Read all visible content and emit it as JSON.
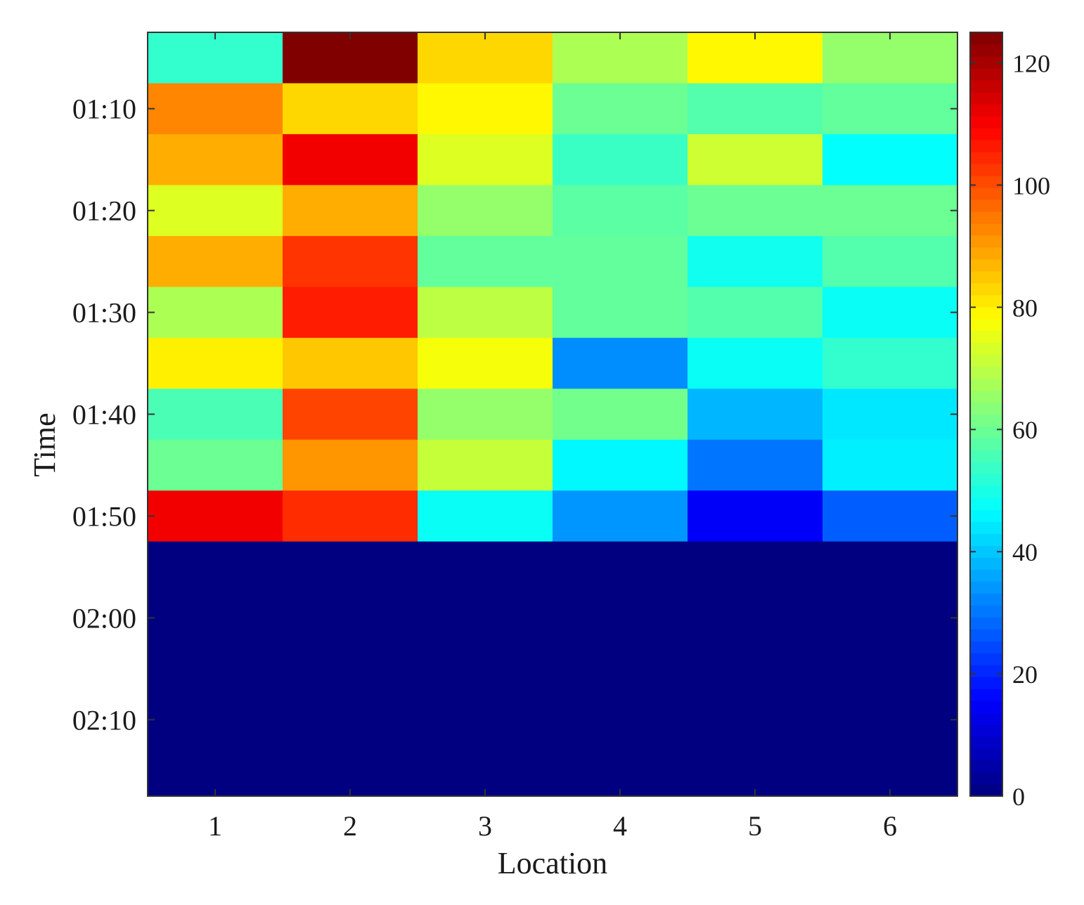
{
  "chart_data": {
    "type": "heatmap",
    "title": "",
    "xlabel": "Location",
    "ylabel": "Time",
    "x_categories": [
      "1",
      "2",
      "3",
      "4",
      "5",
      "6"
    ],
    "y_categories": [
      "01:05",
      "01:10",
      "01:15",
      "01:20",
      "01:25",
      "01:30",
      "01:35",
      "01:40",
      "01:45",
      "01:50",
      "01:55",
      "02:00",
      "02:05",
      "02:10",
      "02:15"
    ],
    "y_tick_labels": [
      "01:10",
      "01:20",
      "01:30",
      "01:40",
      "01:50",
      "02:00",
      "02:10"
    ],
    "values": [
      [
        53,
        125,
        83,
        68,
        79,
        65
      ],
      [
        93,
        83,
        79,
        60,
        57,
        59
      ],
      [
        88,
        111,
        74,
        54,
        72,
        47
      ],
      [
        74,
        88,
        65,
        58,
        60,
        60
      ],
      [
        88,
        103,
        59,
        59,
        49,
        57
      ],
      [
        68,
        106,
        70,
        59,
        57,
        48
      ],
      [
        80,
        85,
        77,
        33,
        48,
        53
      ],
      [
        56,
        101,
        65,
        61,
        38,
        44
      ],
      [
        60,
        91,
        71,
        46,
        30,
        45
      ],
      [
        111,
        104,
        48,
        34,
        15,
        27
      ],
      [
        0,
        0,
        0,
        0,
        0,
        0
      ],
      [
        0,
        0,
        0,
        0,
        0,
        0
      ],
      [
        0,
        0,
        0,
        0,
        0,
        0
      ],
      [
        0,
        0,
        0,
        0,
        0,
        0
      ],
      [
        0,
        0,
        0,
        0,
        0,
        0
      ]
    ],
    "colorbar": {
      "colormap": "jet",
      "range": [
        0,
        125
      ],
      "ticks": [
        0,
        20,
        40,
        60,
        80,
        100,
        120
      ]
    },
    "grid": false,
    "legend": "colorbar-right"
  }
}
